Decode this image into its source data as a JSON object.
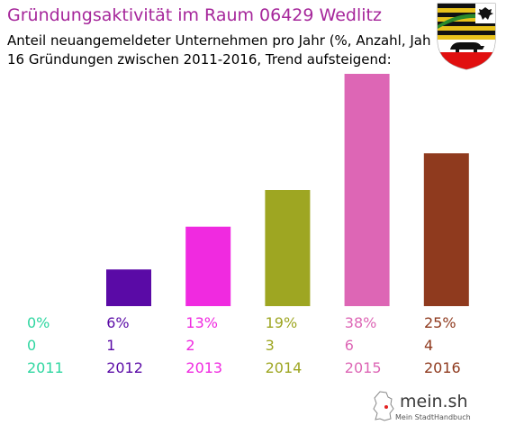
{
  "header": {
    "title": "Gründungsaktivität im Raum 06429 Wedlitz",
    "subtitle_line1": "Anteil neuangemeldeter Unternehmen pro Jahr (%, Anzahl, Jahr)",
    "subtitle_line2": "16 Gründungen zwischen 2011-2016, Trend aufsteigend:"
  },
  "crest": {
    "icon": "saxony-anhalt-coat-of-arms"
  },
  "chart_data": {
    "type": "bar",
    "categories": [
      "2011",
      "2012",
      "2013",
      "2014",
      "2015",
      "2016"
    ],
    "percent_labels": [
      "0%",
      "6%",
      "13%",
      "19%",
      "38%",
      "25%"
    ],
    "counts": [
      0,
      1,
      2,
      3,
      6,
      4
    ],
    "values": [
      0,
      6,
      13,
      19,
      38,
      25
    ],
    "colors": [
      "#2ed6a0",
      "#5a0aa6",
      "#f02ae0",
      "#9ea622",
      "#dd66b5",
      "#8f3a1e"
    ],
    "title": "",
    "xlabel": "",
    "ylabel": "",
    "ylim": [
      0,
      38
    ],
    "grid": false
  },
  "footer": {
    "logo_text": "mein.sh",
    "logo_tagline": "Mein StadtHandbuch",
    "logo_icon": "germany-map-icon"
  }
}
